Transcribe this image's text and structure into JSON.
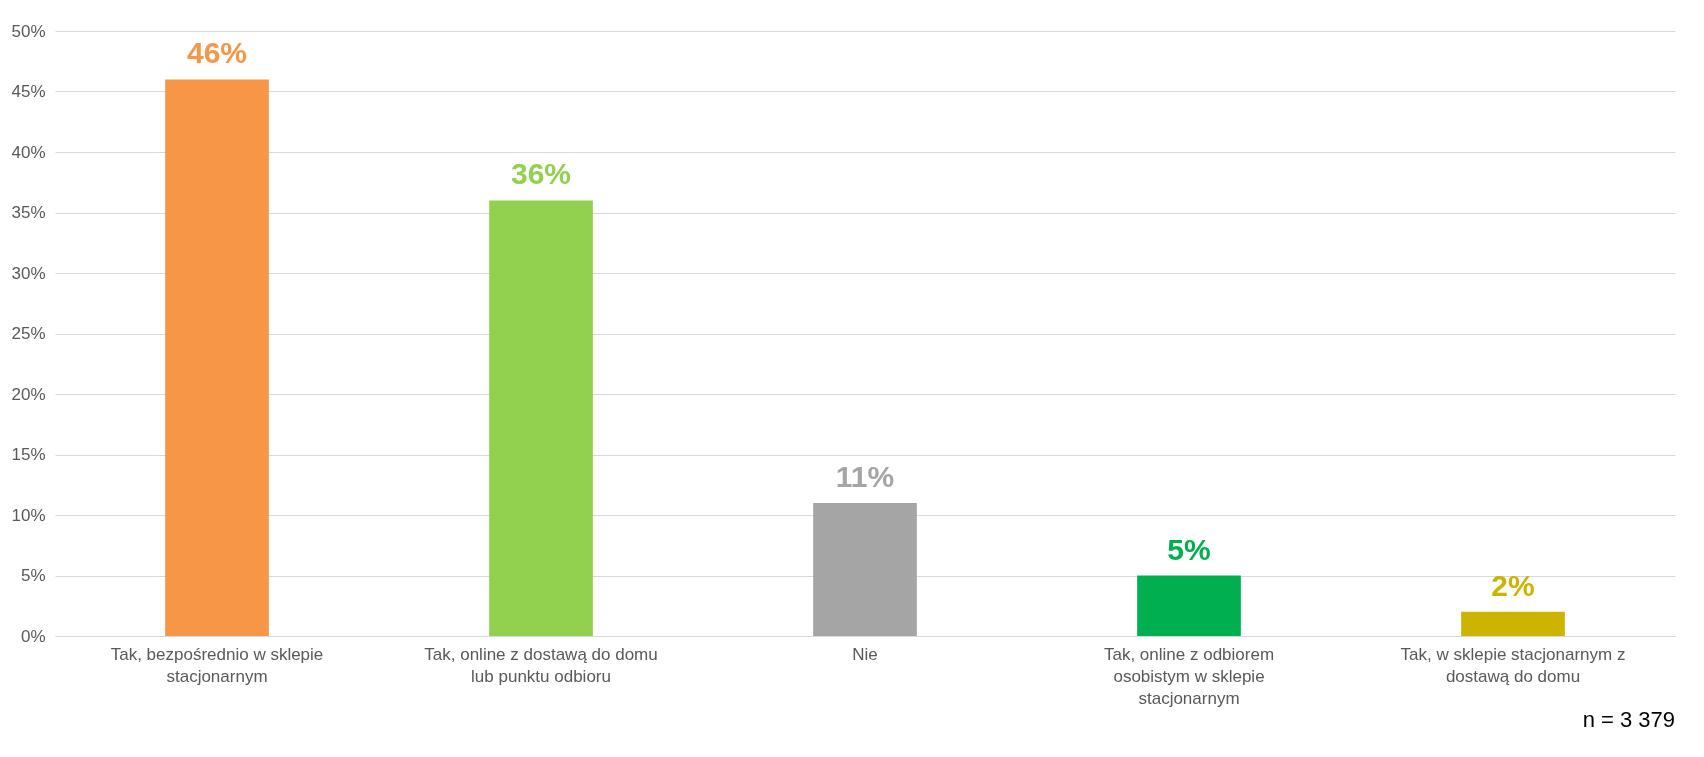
{
  "chart_data": {
    "type": "bar",
    "categories": [
      "Tak, bezpośrednio w sklepie stacjonarnym",
      "Tak, online z dostawą do domu lub punktu odbioru",
      "Nie",
      "Tak, online z odbiorem osobistym w sklepie stacjonarnym",
      "Tak, w sklepie stacjonarnym z dostawą do domu"
    ],
    "values": [
      46,
      36,
      11,
      5,
      2
    ],
    "colors": [
      "#f79646",
      "#92d050",
      "#a5a5a5",
      "#00b050",
      "#ccb400"
    ],
    "value_labels": [
      "46%",
      "36%",
      "11%",
      "5%",
      "2%"
    ],
    "ylim": [
      0,
      50
    ],
    "yticks": [
      {
        "value": 0,
        "label": "0%"
      },
      {
        "value": 5,
        "label": "5%"
      },
      {
        "value": 10,
        "label": "10%"
      },
      {
        "value": 15,
        "label": "15%"
      },
      {
        "value": 20,
        "label": "20%"
      },
      {
        "value": 25,
        "label": "25%"
      },
      {
        "value": 30,
        "label": "30%"
      },
      {
        "value": 35,
        "label": "35%"
      },
      {
        "value": 40,
        "label": "40%"
      },
      {
        "value": 45,
        "label": "45%"
      },
      {
        "value": 50,
        "label": "50%"
      }
    ],
    "grid": "y",
    "annotations": [
      "n = 3 379"
    ]
  }
}
